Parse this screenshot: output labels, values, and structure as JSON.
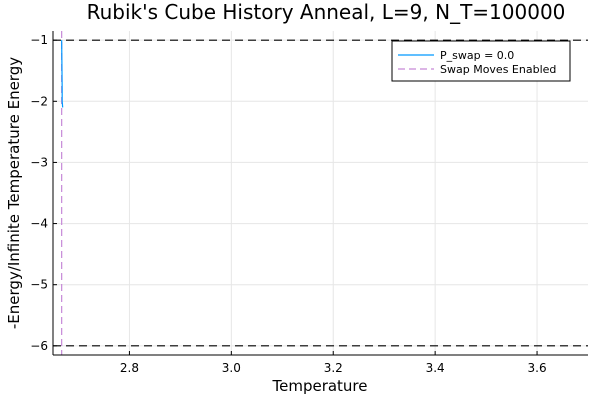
{
  "chart_data": {
    "type": "line",
    "title": "Rubik's Cube History Anneal, L=9, N_T=100000",
    "xlabel": "Temperature",
    "ylabel": "-Energy/Infinite Temperature Energy",
    "xlim": [
      2.65,
      3.7
    ],
    "ylim": [
      -6.15,
      -0.85
    ],
    "xticks": [
      2.8,
      3.0,
      3.2,
      3.4,
      3.6
    ],
    "xtick_labels": [
      "2.8",
      "3.0",
      "3.2",
      "3.4",
      "3.6"
    ],
    "yticks": [
      -1,
      -2,
      -3,
      -4,
      -5,
      -6
    ],
    "ytick_labels": [
      "−1",
      "−2",
      "−3",
      "−4",
      "−5",
      "−6"
    ],
    "grid": true,
    "legend_position": "top-right",
    "series": [
      {
        "name": "P_swap = 0.0",
        "color": "#0099ff",
        "x": [
          2.667,
          2.6675,
          2.668,
          2.668,
          2.6685,
          2.669
        ],
        "y": [
          -1.0,
          -1.4,
          -1.8,
          -2.0,
          -2.05,
          -2.1
        ]
      }
    ],
    "vertical_lines": [
      {
        "name": "Swap Moves Enabled",
        "x": 2.667,
        "color": "#c689d8",
        "style": "dashed"
      }
    ],
    "horizontal_lines": [
      {
        "y": -1,
        "color": "#000000",
        "style": "dashed"
      },
      {
        "y": -6,
        "color": "#000000",
        "style": "dashed"
      }
    ]
  }
}
